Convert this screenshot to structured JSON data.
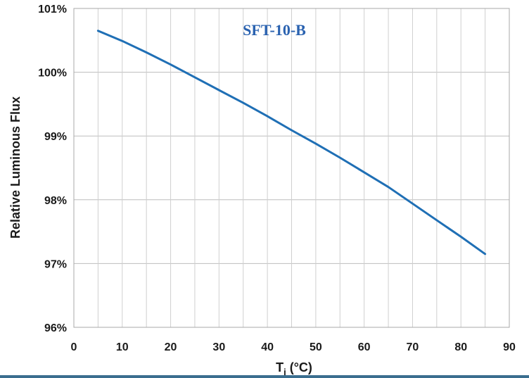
{
  "chart_data": {
    "type": "line",
    "title": "SFT-10-B",
    "xlabel_main": "T",
    "xlabel_sub": "j",
    "xlabel_unit": " (°C)",
    "ylabel": "Relative Luminous Flux",
    "xlim": [
      0,
      90
    ],
    "ylim": [
      96,
      101
    ],
    "x_ticks": [
      0,
      10,
      20,
      30,
      40,
      50,
      60,
      70,
      80,
      90
    ],
    "y_ticks": [
      96,
      97,
      98,
      99,
      100,
      101
    ],
    "y_tick_labels": [
      "96%",
      "97%",
      "98%",
      "99%",
      "100%",
      "101%"
    ],
    "grid": true,
    "series": [
      {
        "color": "#1f6fb5",
        "x": [
          5,
          10,
          15,
          20,
          25,
          30,
          35,
          40,
          45,
          50,
          55,
          60,
          65,
          70,
          75,
          80,
          85
        ],
        "y": [
          100.65,
          100.49,
          100.31,
          100.12,
          99.92,
          99.72,
          99.52,
          99.31,
          99.09,
          98.88,
          98.66,
          98.43,
          98.2,
          97.94,
          97.68,
          97.42,
          97.15
        ]
      }
    ]
  }
}
